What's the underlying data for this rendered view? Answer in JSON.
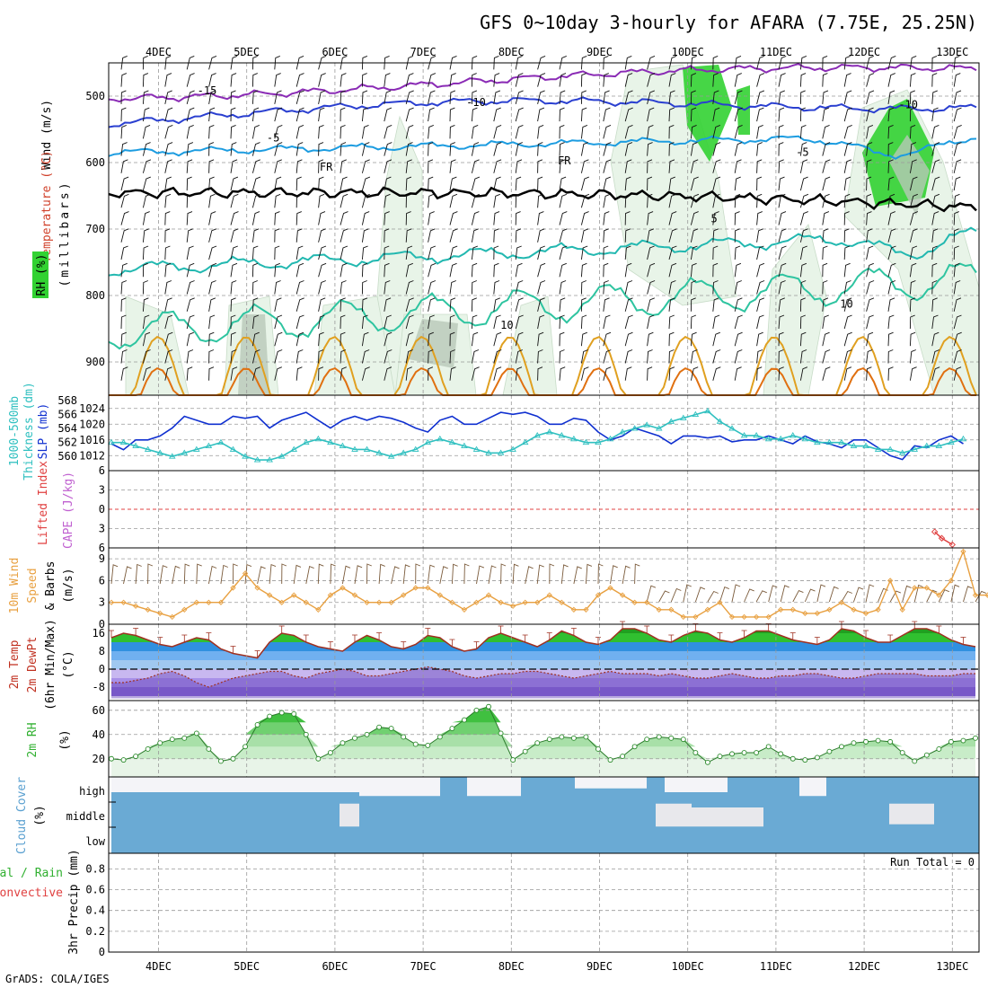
{
  "title": "GFS 0~10day 3-hourly for AFARA (7.75E, 25.25N)",
  "footer": "GrADS: COLA/IGES",
  "colors": {
    "purple": "#8a2bb5",
    "blue": "#2a3fd0",
    "lightblue": "#1c9ce0",
    "teal": "#22b8b0",
    "green": "#2ec4a0",
    "orange": "#e0a020",
    "darkorange": "#e07010",
    "fr": "#000000",
    "rhgreen": "#32d232",
    "cloud": "#6aaad4",
    "tempgreen": "#30c030",
    "tempblue": "#3090e0",
    "dewpurple": "#8060d0",
    "wind10m": "#e8a040",
    "thickness": "#30c0c0",
    "slp": "#1030d0"
  },
  "chart_data": [
    {
      "id": "panel-upper-air",
      "type": "contour",
      "ylabel": "(millibars)",
      "side_labels": [
        "Wind (m/s)",
        "Temperature (°C)",
        "RH (%)"
      ],
      "ylim": [
        1000,
        450
      ],
      "yticks": [
        500,
        600,
        700,
        800,
        900
      ],
      "x_dates": [
        "4DEC",
        "5DEC",
        "6DEC",
        "7DEC",
        "8DEC",
        "9DEC",
        "10DEC",
        "11DEC",
        "12DEC",
        "13DEC"
      ],
      "contour_labels": [
        {
          "text": "-15",
          "day": 0.55,
          "p": 497,
          "color": "purple"
        },
        {
          "text": "-10",
          "day": 3.6,
          "p": 515,
          "color": "blue"
        },
        {
          "text": "-10",
          "day": 8.5,
          "p": 518,
          "color": "blue"
        },
        {
          "text": "-5",
          "day": 1.3,
          "p": 568,
          "color": "lightblue"
        },
        {
          "text": "-5",
          "day": 7.3,
          "p": 590,
          "color": "lightblue"
        },
        {
          "text": "FR",
          "day": 1.9,
          "p": 612,
          "color": "fr"
        },
        {
          "text": "FR",
          "day": 4.6,
          "p": 603,
          "color": "fr"
        },
        {
          "text": "5",
          "day": 6.3,
          "p": 690,
          "color": "teal"
        },
        {
          "text": "10",
          "day": 3.95,
          "p": 850,
          "color": "green"
        },
        {
          "text": "10",
          "day": 7.8,
          "p": 818,
          "color": "green"
        }
      ]
    },
    {
      "id": "panel-thickness-slp",
      "type": "line",
      "ylabel_left": "1000-500mb Thickness (dm)",
      "ylabel_right": "SLP (mb)",
      "yticks_left": [
        560,
        562,
        564,
        566,
        568
      ],
      "yticks_right": [
        1012,
        1016,
        1020,
        1024
      ],
      "series": [
        {
          "name": "SLP",
          "color": "slp",
          "marker": "none",
          "axis": "right",
          "range": [
            1010,
            1026
          ],
          "values": [
            1015,
            1013.5,
            1016,
            1016,
            1017,
            1019,
            1022,
            1021,
            1020,
            1020,
            1022,
            1021.5,
            1022,
            1019,
            1021,
            1022,
            1023,
            1021,
            1019,
            1021,
            1022,
            1021,
            1022,
            1021.5,
            1020.5,
            1019,
            1018,
            1021,
            1022,
            1020,
            1020,
            1021.5,
            1023,
            1022.5,
            1023,
            1022,
            1020,
            1020,
            1021.5,
            1021,
            1018,
            1016,
            1017,
            1019,
            1018,
            1017,
            1015,
            1017,
            1017,
            1016.5,
            1017,
            1015.5,
            1016,
            1016,
            1017,
            1016,
            1015,
            1017,
            1015.5,
            1015,
            1014,
            1016,
            1016,
            1014,
            1012,
            1011,
            1014.5,
            1014,
            1016,
            1017,
            1015
          ]
        },
        {
          "name": "Thickness",
          "color": "thickness",
          "marker": "triangle",
          "axis": "left",
          "range": [
            559,
            568
          ],
          "values": [
            562,
            562,
            561.5,
            561,
            560.5,
            560,
            560.5,
            561,
            561.5,
            562,
            561,
            560,
            559.5,
            559.5,
            560,
            561,
            562,
            562.5,
            562,
            561.5,
            561,
            561,
            560.5,
            560,
            560.5,
            561,
            562,
            562.5,
            562,
            561.5,
            561,
            560.5,
            560.5,
            561,
            562,
            563,
            563.5,
            563,
            562.5,
            562,
            562,
            562.5,
            563.5,
            564,
            564.5,
            564,
            565,
            565.5,
            566,
            566.5,
            565,
            564,
            563,
            563,
            562.5,
            562.5,
            563,
            562.5,
            562,
            562,
            562,
            561.5,
            561.5,
            561,
            561,
            560.5,
            561,
            561.5,
            561.5,
            562,
            562.5
          ]
        }
      ]
    },
    {
      "id": "panel-li-cape",
      "type": "line",
      "ylabel_left": "Lifted Index",
      "ylabel_right": "CAPE (J/kg)",
      "yticks": [
        -6,
        -3,
        0,
        3,
        6
      ],
      "ylim": [
        -6,
        6
      ],
      "li_points": [
        {
          "day": 8.8,
          "li": 3.5
        },
        {
          "day": 8.88,
          "li": 4.5
        },
        {
          "day": 9.0,
          "li": 5.5
        }
      ]
    },
    {
      "id": "panel-wind10m",
      "type": "line",
      "ylabel": "10m Wind Speed & Barbs (m/s)",
      "yticks": [
        0,
        3,
        6,
        9
      ],
      "ylim": [
        0,
        10.5
      ],
      "series": [
        {
          "name": "Speed",
          "color": "wind10m",
          "marker": "diamond",
          "values": [
            3,
            3,
            2.5,
            2,
            1.5,
            1,
            2,
            3,
            3,
            3,
            5,
            7,
            5,
            4,
            3,
            4,
            3,
            2,
            4,
            5,
            4,
            3,
            3,
            3,
            4,
            5,
            5,
            4,
            3,
            2,
            3,
            4,
            3,
            2.5,
            3,
            3,
            4,
            3,
            2,
            2,
            4,
            5,
            4,
            3,
            3,
            2,
            2,
            1,
            1,
            2,
            3,
            1,
            1,
            1,
            1,
            2,
            2,
            1.5,
            1.5,
            2,
            3,
            2,
            1.5,
            2,
            6,
            2,
            5,
            5,
            4,
            6,
            10,
            4,
            4,
            2,
            1.5
          ]
        }
      ]
    },
    {
      "id": "panel-temp-dewpt",
      "type": "area",
      "ylabel": "2m Temp 2m DewPt (6hr Min/Max) (°C)",
      "yticks": [
        -8,
        0,
        8,
        16
      ],
      "ylim": [
        -14,
        20
      ],
      "series": [
        {
          "name": "Temp",
          "values": [
            14,
            16,
            15,
            13,
            11,
            10,
            12,
            14,
            13,
            9,
            7,
            6,
            5,
            12,
            16,
            15,
            12,
            10,
            9,
            8,
            12,
            15,
            13,
            10,
            9,
            11,
            15,
            14,
            10,
            8,
            9,
            14,
            16,
            14,
            12,
            10,
            13,
            17,
            15,
            12,
            11,
            13,
            18,
            18,
            16,
            13,
            12,
            15,
            17,
            16,
            13,
            12,
            14,
            17,
            17,
            15,
            13,
            12,
            11,
            13,
            18,
            17,
            14,
            12,
            12,
            15,
            18,
            18,
            16,
            13,
            11,
            10
          ]
        },
        {
          "name": "DewPt",
          "values": [
            -6,
            -6,
            -5,
            -4,
            -2,
            -1,
            -3,
            -6,
            -8,
            -6,
            -4,
            -3,
            -2,
            -1,
            -1,
            -3,
            -4,
            -2,
            -1,
            0,
            -1,
            -3,
            -3,
            -2,
            -1,
            0,
            1,
            0,
            -1,
            -3,
            -4,
            -3,
            -2,
            -2,
            -1,
            -1,
            -2,
            -3,
            -4,
            -3,
            -2,
            -1,
            -2,
            -2,
            -2,
            -3,
            -2,
            -3,
            -4,
            -4,
            -3,
            -2,
            -3,
            -4,
            -4,
            -3,
            -3,
            -2,
            -2,
            -3,
            -4,
            -4,
            -3,
            -2,
            -2,
            -2,
            -2,
            -3,
            -3,
            -3,
            -2,
            -2
          ]
        }
      ]
    },
    {
      "id": "panel-rh2m",
      "type": "area",
      "ylabel": "2m RH (%)",
      "yticks": [
        20,
        40,
        60
      ],
      "ylim": [
        5,
        68
      ],
      "series": [
        {
          "name": "RH",
          "values": [
            20,
            19,
            22,
            28,
            33,
            36,
            37,
            41,
            28,
            18,
            20,
            30,
            48,
            55,
            58,
            57,
            40,
            20,
            25,
            33,
            37,
            40,
            46,
            45,
            38,
            32,
            31,
            38,
            45,
            52,
            60,
            63,
            41,
            19,
            26,
            33,
            36,
            38,
            37,
            38,
            28,
            19,
            22,
            30,
            36,
            38,
            37,
            36,
            25,
            17,
            22,
            24,
            25,
            25,
            30,
            24,
            20,
            19,
            21,
            26,
            30,
            33,
            34,
            35,
            34,
            25,
            18,
            23,
            28,
            34,
            35,
            37
          ]
        }
      ]
    },
    {
      "id": "panel-cloud",
      "type": "heatmap",
      "ylabel": "Cloud Cover (%)",
      "row_labels": [
        "high",
        "middle",
        "low"
      ]
    },
    {
      "id": "panel-precip",
      "type": "bar",
      "ylabel_left": "Total / Rain Convective",
      "ylabel": "3hr Precip (mm)",
      "yticks": [
        0,
        0.2,
        0.4,
        0.6,
        0.8
      ],
      "ylim": [
        0,
        0.95
      ],
      "run_total": "Run Total = 0",
      "values": []
    }
  ],
  "axis_labels": {
    "wind": "Wind (m/s)",
    "temperature": "Temperature (°C)",
    "rh": "RH (%)",
    "millibars": "(millibars)",
    "thickness": "1000-500mb",
    "thickness2": "Thickness (dm)",
    "slp": "SLP (mb)",
    "lifted": "Lifted Index",
    "cape": "CAPE (J/kg)",
    "wind10a": "10m Wind",
    "wind10b": "Speed",
    "wind10c": "& Barbs",
    "wind10d": "(m/s)",
    "t2a": "2m Temp",
    "t2b": "2m DewPt",
    "t2c": "(6hr Min/Max)",
    "t2d": "(°C)",
    "rh2a": "2m RH",
    "rh2b": "(%)",
    "ccA": "Cloud Cover",
    "ccB": "(%)",
    "prA": "Total / Rain",
    "prB": "Convective",
    "prC": "3hr Precip (mm)"
  }
}
